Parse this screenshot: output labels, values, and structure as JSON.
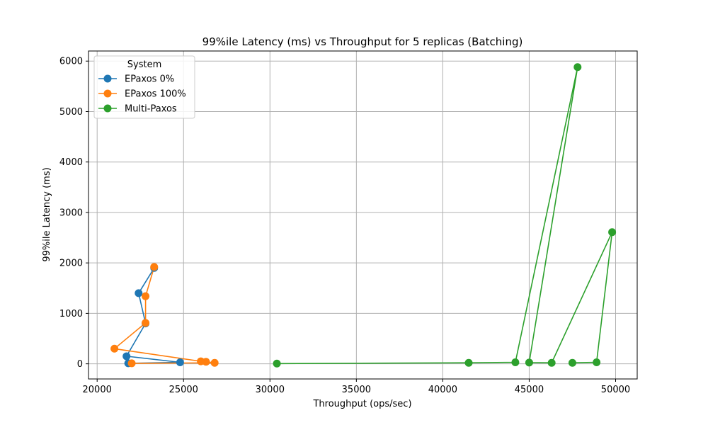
{
  "chart_data": {
    "type": "line",
    "title": "99%ile Latency (ms) vs Throughput for 5 replicas (Batching)",
    "xlabel": "Throughput (ops/sec)",
    "ylabel": "99%ile Latency (ms)",
    "xlim": [
      19500,
      51250
    ],
    "ylim": [
      -300,
      6200
    ],
    "xticks": [
      20000,
      25000,
      30000,
      35000,
      40000,
      45000,
      50000
    ],
    "yticks": [
      0,
      1000,
      2000,
      3000,
      4000,
      5000,
      6000
    ],
    "grid": true,
    "legend": {
      "title": "System",
      "placement": "top-left"
    },
    "series": [
      {
        "name": "EPaxos 0%",
        "color": "#1f77b4",
        "points": [
          [
            21800,
            10
          ],
          [
            24800,
            30
          ],
          [
            21700,
            150
          ],
          [
            22800,
            800
          ],
          [
            22400,
            1400
          ],
          [
            23300,
            1900
          ]
        ]
      },
      {
        "name": "EPaxos 100%",
        "color": "#ff7f0e",
        "points": [
          [
            22000,
            10
          ],
          [
            26800,
            20
          ],
          [
            26300,
            40
          ],
          [
            26000,
            50
          ],
          [
            21000,
            300
          ],
          [
            22800,
            810
          ],
          [
            22800,
            1340
          ],
          [
            23300,
            1920
          ]
        ]
      },
      {
        "name": "Multi-Paxos",
        "color": "#2ca02c",
        "points": [
          [
            30400,
            5
          ],
          [
            41500,
            20
          ],
          [
            44200,
            30
          ],
          [
            47800,
            5880
          ],
          [
            45000,
            25
          ],
          [
            46300,
            20
          ],
          [
            49800,
            2610
          ],
          [
            48900,
            30
          ],
          [
            47500,
            20
          ]
        ]
      }
    ]
  }
}
